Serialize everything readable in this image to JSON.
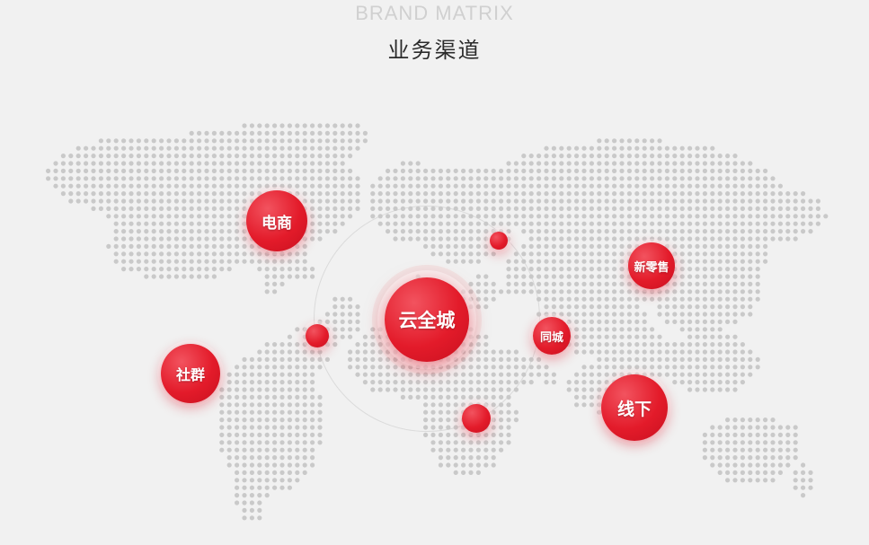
{
  "header": {
    "eyebrow": "BRAND MATRIX",
    "title": "业务渠道"
  },
  "colors": {
    "accent": "#e31b2a",
    "dot": "#c9c9c9",
    "background": "#f1f1f1"
  },
  "nodes": {
    "hub": "云全城",
    "ecommerce": "电商",
    "social": "社群",
    "new_retail": "新零售",
    "local": "同城",
    "offline": "线下"
  }
}
